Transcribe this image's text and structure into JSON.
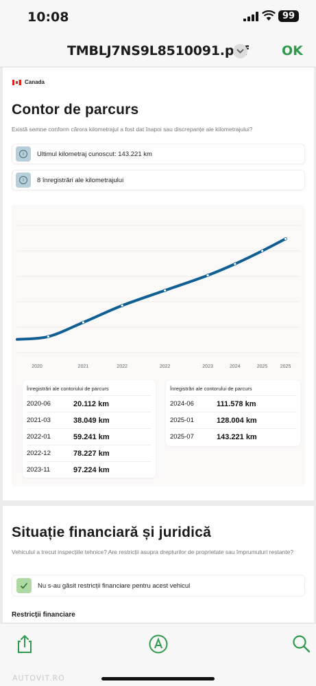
{
  "status": {
    "time": "10:08",
    "battery": "99"
  },
  "nav": {
    "title": "TMBLJ7NS9L8510091.pdf",
    "ok_label": "OK"
  },
  "odometer": {
    "country": "Canada",
    "title": "Contor de parcurs",
    "description": "Există semne conform cărora kilometrajul a fost dat înapoi sau discrepanțe ale kilometrajului?",
    "last_km_label": "Ultimul kilometraj cunoscut: 143.221 km",
    "records_label": "8 înregistrări ale kilometrajului",
    "table_title": "Înregistrări ale contorului de parcurs",
    "left_rows": [
      {
        "date": "2020-06",
        "km": "20.112 km"
      },
      {
        "date": "2021-03",
        "km": "38.049 km"
      },
      {
        "date": "2022-01",
        "km": "59.241 km"
      },
      {
        "date": "2022-12",
        "km": "78.227 km"
      },
      {
        "date": "2023-11",
        "km": "97.224  km"
      }
    ],
    "right_rows": [
      {
        "date": "2024-06",
        "km": "111.578 km"
      },
      {
        "date": "2025-01",
        "km": "128.004 km"
      },
      {
        "date": "2025-07",
        "km": "143.221 km"
      }
    ]
  },
  "chart_data": {
    "type": "line",
    "x_tick_labels": [
      "2020",
      "2021",
      "2022",
      "2022",
      "2023",
      "2024",
      "2025",
      "2025"
    ],
    "points": [
      {
        "x": "2020-06",
        "y": 20112
      },
      {
        "x": "2021-03",
        "y": 38049
      },
      {
        "x": "2022-01",
        "y": 59241
      },
      {
        "x": "2022-12",
        "y": 78227
      },
      {
        "x": "2023-11",
        "y": 97224
      },
      {
        "x": "2024-06",
        "y": 111578
      },
      {
        "x": "2025-01",
        "y": 128004
      },
      {
        "x": "2025-07",
        "y": 143221
      }
    ],
    "line_color": "#0f5f95",
    "grid": true,
    "legend": "none"
  },
  "financial": {
    "title": "Situație financiară și juridică",
    "description": "Vehiculul a trecut inspecțiile tehnice? Are restricții asupra drepturilor de proprietate sau împrumuturi restante?",
    "no_restrictions": "Nu s-au găsit restricții financiare pentru acest vehicul",
    "section_title": "Restricții financiare"
  },
  "toolbar": {
    "share_icon": "share-icon",
    "markup_icon": "markup-pen-icon",
    "search_icon": "search-icon"
  },
  "watermark": "AUTOVIT.RO"
}
